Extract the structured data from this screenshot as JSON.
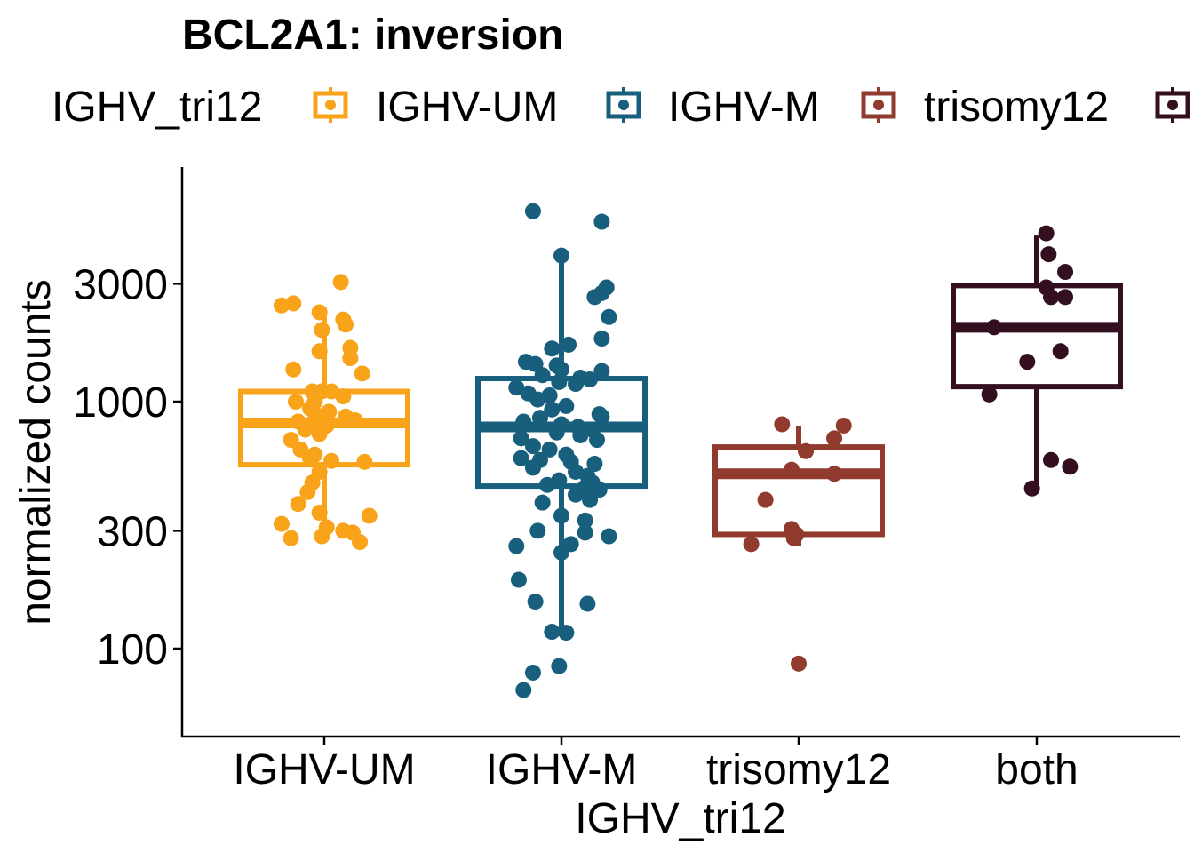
{
  "chart_data": {
    "type": "box",
    "title": "BCL2A1: inversion",
    "xlabel": "IGHV_tri12",
    "ylabel": "normalized counts",
    "yscale": "log10",
    "ylim": [
      55,
      7500
    ],
    "yticks": [
      100,
      300,
      1000,
      3000
    ],
    "ytick_labels": [
      "100",
      "300",
      "1000",
      "3000"
    ],
    "legend": {
      "title": "IGHV_tri12",
      "position": "top"
    },
    "categories": [
      "IGHV-UM",
      "IGHV-M",
      "trisomy12",
      "both"
    ],
    "series": [
      {
        "name": "IGHV-UM",
        "color": "#F9A31B",
        "box": {
          "whisker_low": 280,
          "q1": 555,
          "median": 820,
          "q3": 1100,
          "whisker_high": 2400
        },
        "points": [
          {
            "dx": -0.18,
            "y": 2450
          },
          {
            "dx": -0.13,
            "y": 2500
          },
          {
            "dx": -0.02,
            "y": 2300
          },
          {
            "dx": 0.07,
            "y": 3050
          },
          {
            "dx": 0.08,
            "y": 2150
          },
          {
            "dx": 0.09,
            "y": 2050
          },
          {
            "dx": -0.01,
            "y": 1950
          },
          {
            "dx": 0.11,
            "y": 1650
          },
          {
            "dx": -0.02,
            "y": 1600
          },
          {
            "dx": 0.11,
            "y": 1500
          },
          {
            "dx": -0.13,
            "y": 1350
          },
          {
            "dx": 0.16,
            "y": 1300
          },
          {
            "dx": -0.05,
            "y": 1100
          },
          {
            "dx": -0.01,
            "y": 1100
          },
          {
            "dx": 0.03,
            "y": 1100
          },
          {
            "dx": 0.08,
            "y": 1050
          },
          {
            "dx": -0.04,
            "y": 1000
          },
          {
            "dx": -0.12,
            "y": 1000
          },
          {
            "dx": -0.06,
            "y": 940
          },
          {
            "dx": 0.02,
            "y": 910
          },
          {
            "dx": -0.03,
            "y": 880
          },
          {
            "dx": 0.09,
            "y": 870
          },
          {
            "dx": 0.13,
            "y": 840
          },
          {
            "dx": -0.11,
            "y": 830
          },
          {
            "dx": -0.05,
            "y": 820
          },
          {
            "dx": 0.01,
            "y": 800
          },
          {
            "dx": -0.08,
            "y": 770
          },
          {
            "dx": -0.02,
            "y": 740
          },
          {
            "dx": -0.14,
            "y": 700
          },
          {
            "dx": -0.1,
            "y": 640
          },
          {
            "dx": -0.04,
            "y": 610
          },
          {
            "dx": -0.06,
            "y": 590
          },
          {
            "dx": 0.03,
            "y": 575
          },
          {
            "dx": 0.17,
            "y": 570
          },
          {
            "dx": -0.02,
            "y": 520
          },
          {
            "dx": -0.05,
            "y": 470
          },
          {
            "dx": -0.07,
            "y": 430
          },
          {
            "dx": -0.11,
            "y": 385
          },
          {
            "dx": -0.02,
            "y": 355
          },
          {
            "dx": 0.19,
            "y": 345
          },
          {
            "dx": -0.18,
            "y": 320
          },
          {
            "dx": 0.01,
            "y": 310
          },
          {
            "dx": 0.08,
            "y": 300
          },
          {
            "dx": 0.12,
            "y": 295
          },
          {
            "dx": -0.01,
            "y": 285
          },
          {
            "dx": -0.14,
            "y": 280
          },
          {
            "dx": 0.15,
            "y": 270
          }
        ]
      },
      {
        "name": "IGHV-M",
        "color": "#185F7D",
        "box": {
          "whisker_low": 116,
          "q1": 455,
          "median": 790,
          "q3": 1240,
          "whisker_high": 3650
        },
        "points": [
          {
            "dx": -0.12,
            "y": 5900
          },
          {
            "dx": 0.17,
            "y": 5350
          },
          {
            "dx": 0.0,
            "y": 3900
          },
          {
            "dx": 0.19,
            "y": 2900
          },
          {
            "dx": 0.17,
            "y": 2750
          },
          {
            "dx": 0.14,
            "y": 2650
          },
          {
            "dx": 0.2,
            "y": 2200
          },
          {
            "dx": 0.17,
            "y": 1800
          },
          {
            "dx": 0.03,
            "y": 1700
          },
          {
            "dx": -0.04,
            "y": 1640
          },
          {
            "dx": -0.15,
            "y": 1450
          },
          {
            "dx": -0.11,
            "y": 1420
          },
          {
            "dx": -0.02,
            "y": 1400
          },
          {
            "dx": 0.0,
            "y": 1350
          },
          {
            "dx": 0.17,
            "y": 1330
          },
          {
            "dx": -0.08,
            "y": 1280
          },
          {
            "dx": 0.08,
            "y": 1250
          },
          {
            "dx": 0.12,
            "y": 1230
          },
          {
            "dx": -0.01,
            "y": 1200
          },
          {
            "dx": 0.06,
            "y": 1180
          },
          {
            "dx": -0.19,
            "y": 1140
          },
          {
            "dx": -0.14,
            "y": 1080
          },
          {
            "dx": -0.05,
            "y": 1060
          },
          {
            "dx": -0.1,
            "y": 1020
          },
          {
            "dx": 0.02,
            "y": 960
          },
          {
            "dx": -0.04,
            "y": 930
          },
          {
            "dx": 0.16,
            "y": 890
          },
          {
            "dx": 0.17,
            "y": 870
          },
          {
            "dx": -0.09,
            "y": 860
          },
          {
            "dx": -0.16,
            "y": 830
          },
          {
            "dx": 0.0,
            "y": 810
          },
          {
            "dx": 0.07,
            "y": 790
          },
          {
            "dx": 0.13,
            "y": 770
          },
          {
            "dx": -0.02,
            "y": 750
          },
          {
            "dx": 0.08,
            "y": 730
          },
          {
            "dx": -0.17,
            "y": 710
          },
          {
            "dx": 0.15,
            "y": 700
          },
          {
            "dx": -0.12,
            "y": 660
          },
          {
            "dx": -0.05,
            "y": 640
          },
          {
            "dx": 0.02,
            "y": 610
          },
          {
            "dx": -0.17,
            "y": 590
          },
          {
            "dx": -0.09,
            "y": 580
          },
          {
            "dx": 0.04,
            "y": 570
          },
          {
            "dx": 0.14,
            "y": 560
          },
          {
            "dx": -0.12,
            "y": 540
          },
          {
            "dx": 0.06,
            "y": 520
          },
          {
            "dx": 0.11,
            "y": 500
          },
          {
            "dx": -0.01,
            "y": 480
          },
          {
            "dx": 0.13,
            "y": 470
          },
          {
            "dx": -0.06,
            "y": 460
          },
          {
            "dx": 0.1,
            "y": 450
          },
          {
            "dx": 0.16,
            "y": 440
          },
          {
            "dx": 0.06,
            "y": 420
          },
          {
            "dx": 0.12,
            "y": 400
          },
          {
            "dx": -0.08,
            "y": 390
          },
          {
            "dx": 0.0,
            "y": 345
          },
          {
            "dx": 0.1,
            "y": 330
          },
          {
            "dx": -0.1,
            "y": 300
          },
          {
            "dx": 0.1,
            "y": 295
          },
          {
            "dx": 0.2,
            "y": 285
          },
          {
            "dx": 0.04,
            "y": 265
          },
          {
            "dx": -0.19,
            "y": 260
          },
          {
            "dx": 0.0,
            "y": 245
          },
          {
            "dx": -0.18,
            "y": 190
          },
          {
            "dx": -0.11,
            "y": 155
          },
          {
            "dx": 0.11,
            "y": 152
          },
          {
            "dx": -0.04,
            "y": 117
          },
          {
            "dx": 0.02,
            "y": 116
          },
          {
            "dx": -0.01,
            "y": 85
          },
          {
            "dx": -0.12,
            "y": 80
          },
          {
            "dx": -0.16,
            "y": 68
          }
        ]
      },
      {
        "name": "trisomy12",
        "color": "#913A2E",
        "box": {
          "whisker_low": 260,
          "q1": 290,
          "median": 510,
          "q3": 655,
          "whisker_high": 800
        },
        "points": [
          {
            "dx": -0.07,
            "y": 810
          },
          {
            "dx": 0.19,
            "y": 800
          },
          {
            "dx": 0.15,
            "y": 710
          },
          {
            "dx": 0.03,
            "y": 630
          },
          {
            "dx": -0.03,
            "y": 530
          },
          {
            "dx": 0.15,
            "y": 510
          },
          {
            "dx": -0.14,
            "y": 400
          },
          {
            "dx": -0.03,
            "y": 305
          },
          {
            "dx": -0.01,
            "y": 290
          },
          {
            "dx": -0.02,
            "y": 280
          },
          {
            "dx": -0.2,
            "y": 265
          },
          {
            "dx": 0.0,
            "y": 87
          }
        ]
      },
      {
        "name": "both",
        "color": "#330F1F",
        "box": {
          "whisker_low": 440,
          "q1": 1150,
          "median": 2000,
          "q3": 2950,
          "whisker_high": 4700
        },
        "points": [
          {
            "dx": 0.04,
            "y": 4800
          },
          {
            "dx": 0.05,
            "y": 3950
          },
          {
            "dx": 0.12,
            "y": 3350
          },
          {
            "dx": 0.04,
            "y": 2900
          },
          {
            "dx": 0.06,
            "y": 2650
          },
          {
            "dx": 0.12,
            "y": 2650
          },
          {
            "dx": -0.18,
            "y": 2000
          },
          {
            "dx": 0.1,
            "y": 1600
          },
          {
            "dx": -0.04,
            "y": 1450
          },
          {
            "dx": -0.2,
            "y": 1070
          },
          {
            "dx": 0.06,
            "y": 580
          },
          {
            "dx": 0.14,
            "y": 545
          },
          {
            "dx": -0.02,
            "y": 445
          }
        ]
      }
    ]
  }
}
